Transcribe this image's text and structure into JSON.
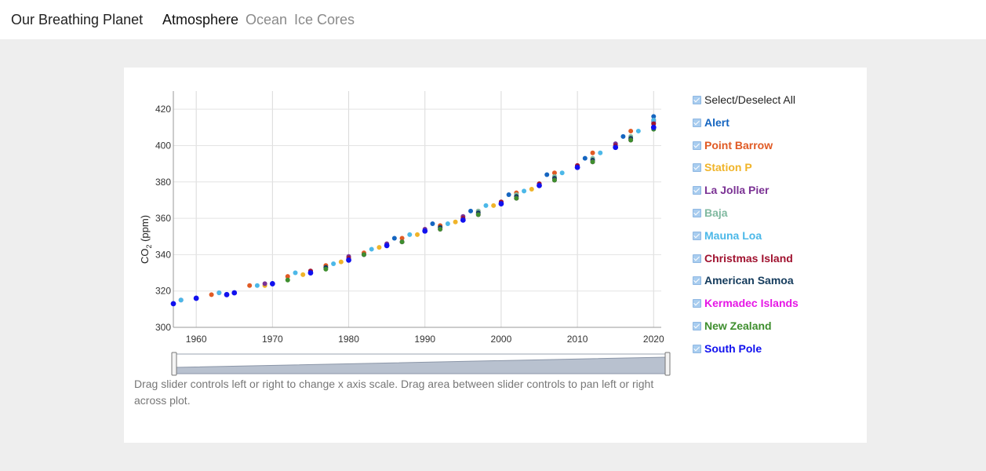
{
  "header": {
    "brand": "Our Breathing Planet",
    "nav": [
      "Atmosphere",
      "Ocean",
      "Ice Cores"
    ]
  },
  "caption": "Drag slider controls left or right to change x axis scale. Drag area between slider controls to pan left or right across plot.",
  "legend": {
    "select_all": "Select/Deselect All",
    "items": [
      {
        "label": "Alert",
        "color": "#1565c0"
      },
      {
        "label": "Point Barrow",
        "color": "#e05a24"
      },
      {
        "label": "Station P",
        "color": "#f0b429"
      },
      {
        "label": "La Jolla Pier",
        "color": "#7b3294"
      },
      {
        "label": "Baja",
        "color": "#80b9a0"
      },
      {
        "label": "Mauna Loa",
        "color": "#4cb8e8"
      },
      {
        "label": "Christmas Island",
        "color": "#a0122f"
      },
      {
        "label": "American Samoa",
        "color": "#143b5c"
      },
      {
        "label": "Kermadec Islands",
        "color": "#e616e6"
      },
      {
        "label": "New Zealand",
        "color": "#3e8e2e"
      },
      {
        "label": "South Pole",
        "color": "#1111ee"
      }
    ]
  },
  "chart_data": {
    "type": "scatter",
    "title": "",
    "xlabel": "",
    "ylabel": "CO",
    "ylabel_sub": "2",
    "ylabel_unit": " (ppm)",
    "xlim": [
      1957,
      2021
    ],
    "ylim": [
      300,
      430
    ],
    "xticks": [
      1960,
      1970,
      1980,
      1990,
      2000,
      2010,
      2020
    ],
    "yticks": [
      300,
      320,
      340,
      360,
      380,
      400,
      420
    ],
    "grid": true,
    "legend_position": "right",
    "series": [
      {
        "name": "Alert",
        "x": [
          1986,
          1991,
          1996,
          2001,
          2006,
          2011,
          2016,
          2020
        ],
        "y": [
          349,
          357,
          364,
          373,
          384,
          393,
          405,
          416
        ]
      },
      {
        "name": "Point Barrow",
        "x": [
          1962,
          1967,
          1972,
          1977,
          1982,
          1987,
          1992,
          1997,
          2002,
          2007,
          2012,
          2017,
          2020
        ],
        "y": [
          318,
          323,
          328,
          334,
          341,
          349,
          356,
          364,
          374,
          385,
          396,
          408,
          414
        ]
      },
      {
        "name": "Station P",
        "x": [
          1969,
          1974,
          1979,
          1984,
          1989,
          1994,
          1999,
          2004
        ],
        "y": [
          323,
          329,
          336,
          344,
          351,
          358,
          367,
          376
        ]
      },
      {
        "name": "La Jolla Pier",
        "x": [
          1958,
          1963,
          1969,
          1975,
          1980,
          1985,
          1990,
          1995,
          2000,
          2005,
          2010,
          2015,
          2020
        ],
        "y": [
          315,
          319,
          324,
          331,
          339,
          346,
          354,
          361,
          369,
          379,
          389,
          401,
          413
        ]
      },
      {
        "name": "Baja",
        "x": [
          1997,
          2002,
          2007,
          2012,
          2017,
          2020
        ],
        "y": [
          364,
          373,
          383,
          393,
          405,
          412
        ]
      },
      {
        "name": "Mauna Loa",
        "x": [
          1958,
          1963,
          1968,
          1973,
          1978,
          1983,
          1988,
          1993,
          1998,
          2003,
          2008,
          2013,
          2018,
          2020
        ],
        "y": [
          315,
          319,
          323,
          330,
          335,
          343,
          351,
          357,
          367,
          375,
          385,
          396,
          408,
          414
        ]
      },
      {
        "name": "Christmas Island",
        "x": [
          1975,
          1980,
          1985,
          1990,
          1995,
          2000,
          2005,
          2010,
          2015,
          2020
        ],
        "y": [
          331,
          338,
          345,
          353,
          360,
          369,
          379,
          389,
          400,
          412
        ]
      },
      {
        "name": "American Samoa",
        "x": [
          1977,
          1982,
          1987,
          1992,
          1997,
          2002,
          2007,
          2012,
          2017,
          2020
        ],
        "y": [
          333,
          340,
          347,
          355,
          363,
          372,
          382,
          392,
          404,
          410
        ]
      },
      {
        "name": "Kermadec Islands",
        "x": [
          1982,
          1987,
          1992,
          1997,
          2002,
          2007,
          2012,
          2017,
          2020
        ],
        "y": [
          340,
          347,
          354,
          362,
          371,
          381,
          391,
          403,
          410
        ]
      },
      {
        "name": "New Zealand",
        "x": [
          1972,
          1977,
          1982,
          1987,
          1992,
          1997,
          2002,
          2007,
          2012,
          2017,
          2020
        ],
        "y": [
          326,
          332,
          340,
          347,
          354,
          362,
          371,
          381,
          391,
          403,
          409
        ]
      },
      {
        "name": "South Pole",
        "x": [
          1957,
          1960,
          1964,
          1965,
          1970,
          1975,
          1980,
          1985,
          1990,
          1995,
          2000,
          2005,
          2010,
          2015,
          2020
        ],
        "y": [
          313,
          316,
          318,
          319,
          324,
          330,
          337,
          345,
          353,
          359,
          368,
          378,
          388,
          399,
          410
        ]
      }
    ]
  }
}
